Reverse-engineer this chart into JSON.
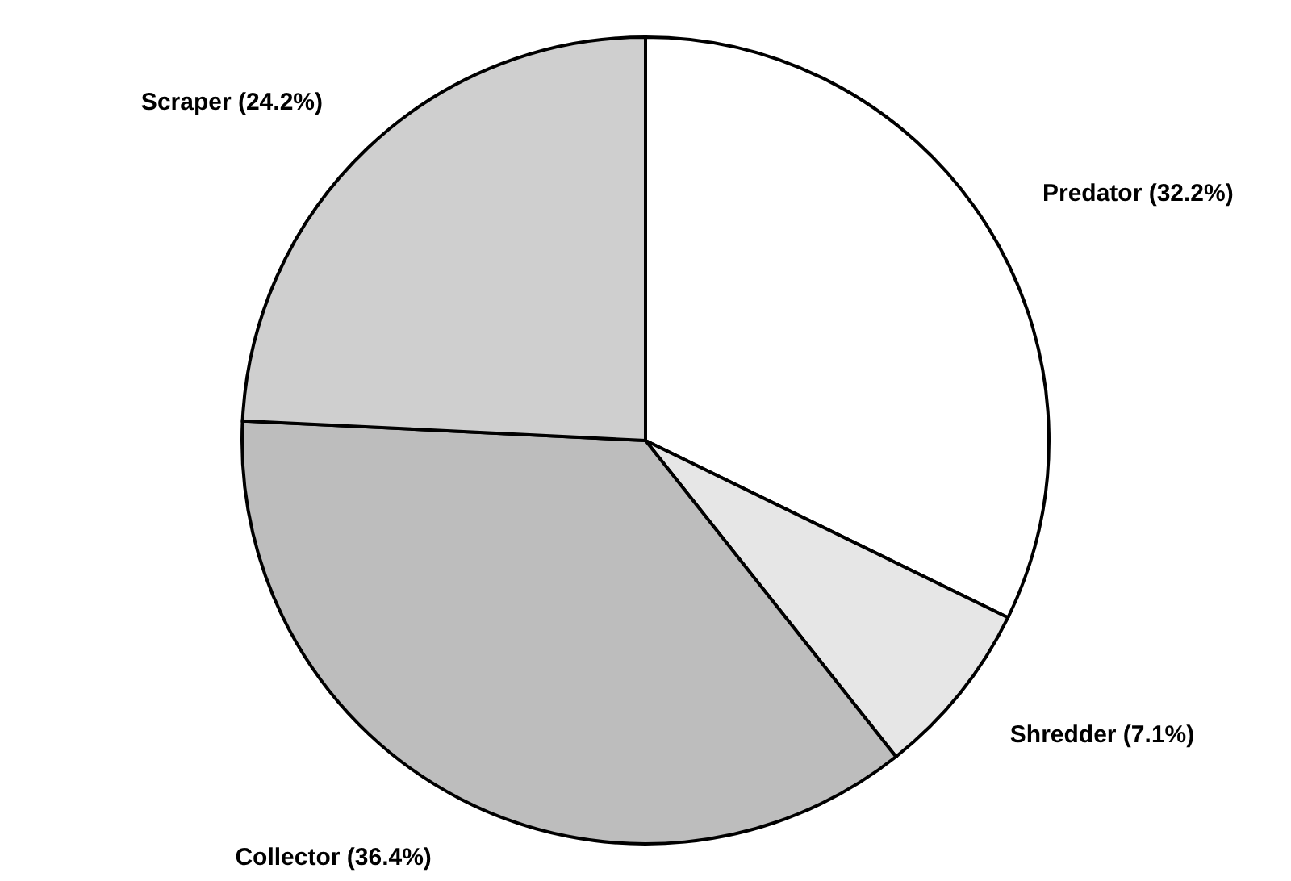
{
  "chart_data": {
    "type": "pie",
    "categories": [
      "Predator",
      "Shredder",
      "Collector",
      "Scraper"
    ],
    "values": [
      32.2,
      7.1,
      36.4,
      24.2
    ],
    "value_labels": [
      "(32.2%)",
      "(7.1%)",
      "(36.4%)",
      "(24.2%)"
    ],
    "colors": [
      "#ffffff",
      "#e6e6e6",
      "#bdbdbd",
      "#cfcfcf"
    ]
  }
}
